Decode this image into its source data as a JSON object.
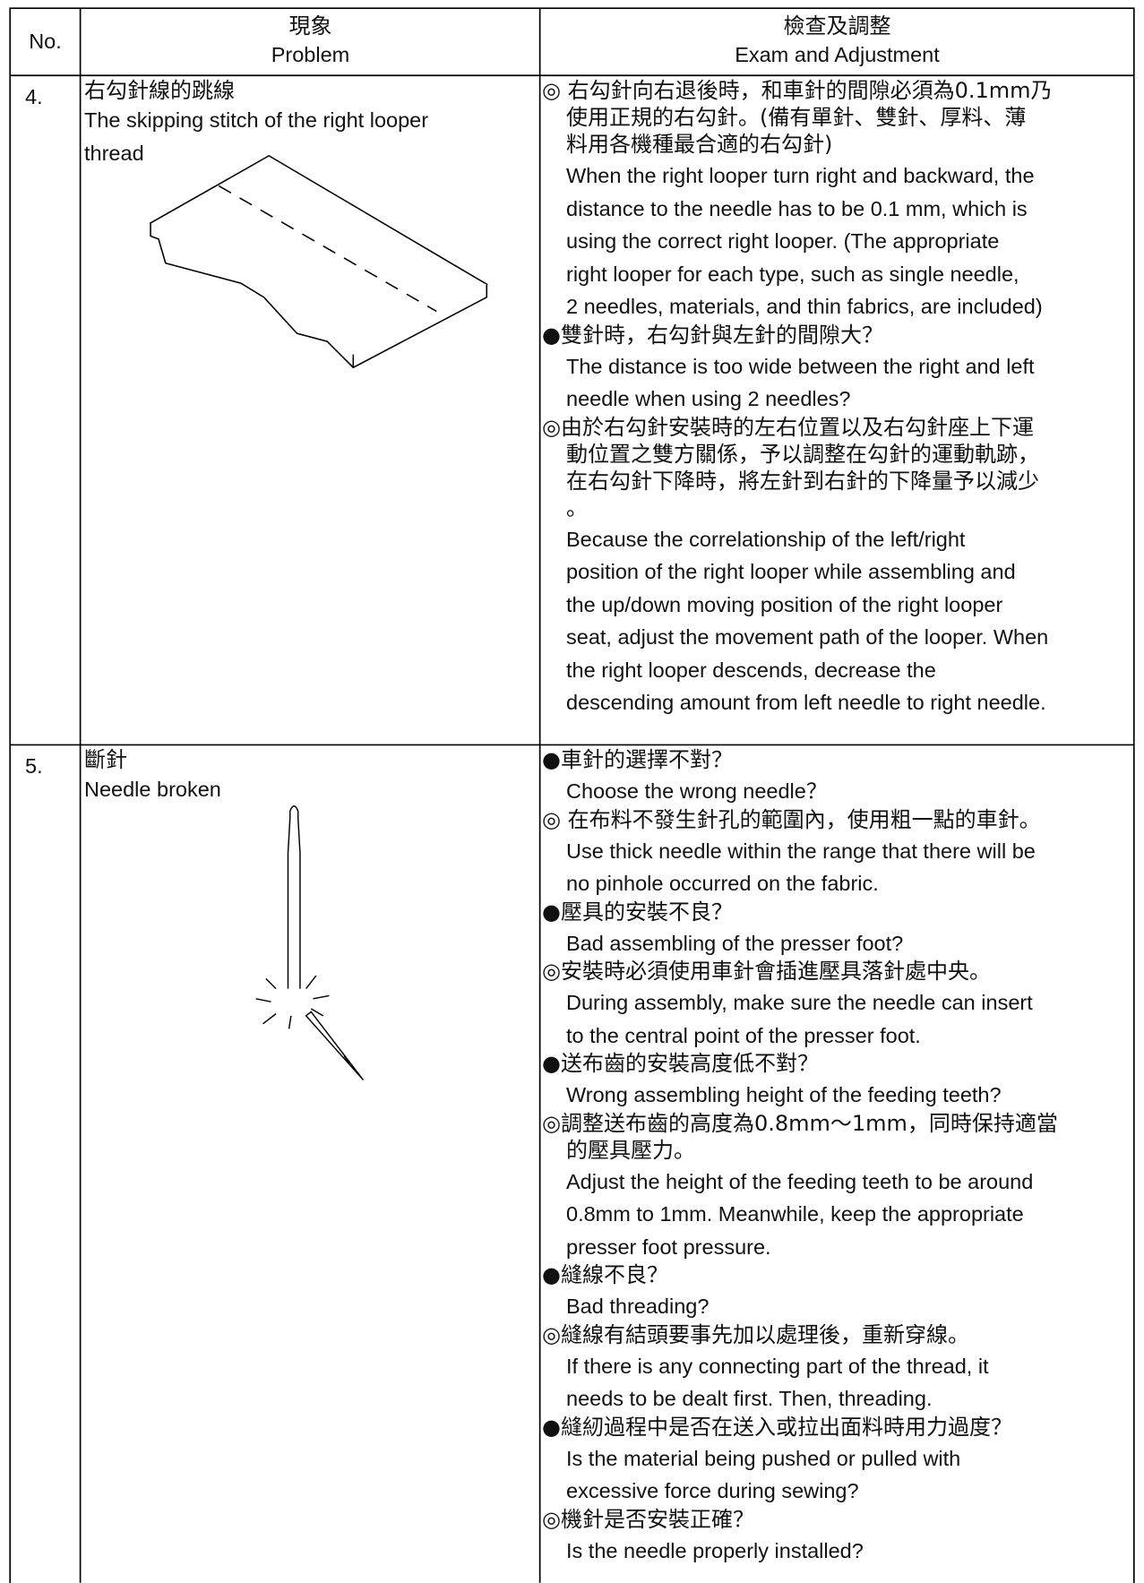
{
  "header": {
    "no": "No.",
    "problem_zh": "現象",
    "problem_en": "Problem",
    "adjust_zh": "檢查及調整",
    "adjust_en": "Exam and Adjustment"
  },
  "rows": [
    {
      "no": "4.",
      "problem": [
        "右勾針線的跳線",
        "The skipping stitch of the right looper",
        "thread"
      ],
      "adjustment": [
        "◎ 右勾針向右退後時，和車針的間隙必須為0.1mm乃",
        "使用正規的右勾針。(備有單針、雙針、厚料、薄",
        "料用各機種最合適的右勾針)",
        "When the right looper turn right and backward, the",
        "distance to the needle has to be 0.1 mm, which is",
        "using the correct right looper. (The appropriate",
        "right looper for each type, such as single needle,",
        "2 needles, materials, and thin fabrics, are included)",
        "●雙針時，右勾針與左針的間隙大？",
        "The distance is too wide between the right and left",
        "needle when using 2 needles?",
        "◎由於右勾針安裝時的左右位置以及右勾針座上下運",
        "動位置之雙方關係，予以調整在勾針的運動軌跡，",
        "在右勾針下降時，將左針到右針的下降量予以減少",
        "。",
        "Because the correlationship of the left/right",
        "position of the right looper while assembling and",
        "the up/down moving position of the right looper",
        "seat, adjust the movement path of the looper. When",
        "the right looper descends, decrease the",
        "descending amount from left needle to right needle."
      ]
    },
    {
      "no": "5.",
      "problem": [
        "斷針",
        "Needle broken"
      ],
      "adjustment": [
        "●車針的選擇不對？",
        "Choose the wrong needle？",
        "◎ 在布料不發生針孔的範圍內，使用粗一點的車針。",
        "Use thick needle within the range that there will be",
        "no pinhole occurred on the fabric.",
        "●壓具的安裝不良？",
        "Bad assembling of the presser foot?",
        "◎安裝時必須使用車針會插進壓具落針處中央。",
        "During assembly, make sure the needle can insert",
        "to the central point of the presser foot.",
        "●送布齒的安裝高度低不對？",
        "Wrong assembling height of the feeding teeth?",
        "◎調整送布齒的高度為0.8mm～1mm，同時保持適當",
        "的壓具壓力。",
        "Adjust the height of the feeding teeth to be around",
        "0.8mm to 1mm. Meanwhile, keep the appropriate",
        "presser foot pressure.",
        "●縫線不良？",
        "Bad threading?",
        "◎縫線有結頭要事先加以處理後，重新穿線。",
        "If there is any connecting part of the thread, it",
        "needs to be dealt first. Then, threading.",
        "●縫紉過程中是否在送入或拉出面料時用力過度？",
        "Is the material being pushed or pulled with",
        "excessive force during sewing?",
        "◎機針是否安裝正確？",
        "Is the needle properly installed?"
      ]
    }
  ]
}
